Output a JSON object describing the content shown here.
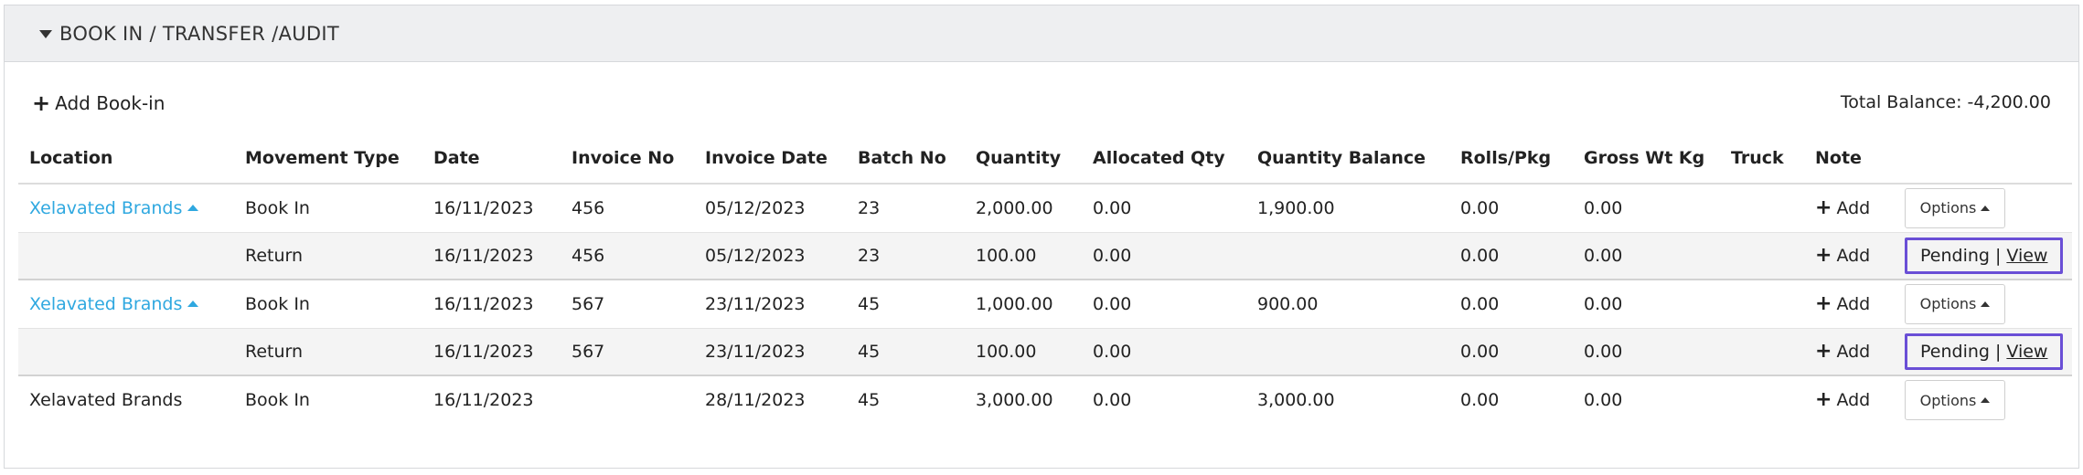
{
  "panel": {
    "title": "BOOK IN / TRANSFER /AUDIT"
  },
  "toolbar": {
    "add_label": "Add Book-in",
    "total_balance": "Total Balance: -4,200.00"
  },
  "table": {
    "headers": [
      "Location",
      "Movement Type",
      "Date",
      "Invoice No",
      "Invoice Date",
      "Batch No",
      "Quantity",
      "Allocated Qty",
      "Quantity Balance",
      "Rolls/Pkg",
      "Gross Wt Kg",
      "Truck",
      "Note",
      ""
    ],
    "note_add_label": "Add",
    "options_label": "Options",
    "pending_label": "Pending",
    "separator": "|",
    "view_label": "View",
    "rows": [
      {
        "location": "Xelavated Brands",
        "movement": "Book In",
        "date": "16/11/2023",
        "invoice_no": "456",
        "invoice_date": "05/12/2023",
        "batch": "23",
        "quantity": "2,000.00",
        "allocated": "0.00",
        "balance": "1,900.00",
        "rolls": "0.00",
        "gross": "0.00",
        "truck": ""
      },
      {
        "location": "",
        "movement": "Return",
        "date": "16/11/2023",
        "invoice_no": "456",
        "invoice_date": "05/12/2023",
        "batch": "23",
        "quantity": "100.00",
        "allocated": "0.00",
        "balance": "",
        "rolls": "0.00",
        "gross": "0.00",
        "truck": ""
      },
      {
        "location": "Xelavated Brands",
        "movement": "Book In",
        "date": "16/11/2023",
        "invoice_no": "567",
        "invoice_date": "23/11/2023",
        "batch": "45",
        "quantity": "1,000.00",
        "allocated": "0.00",
        "balance": "900.00",
        "rolls": "0.00",
        "gross": "0.00",
        "truck": ""
      },
      {
        "location": "",
        "movement": "Return",
        "date": "16/11/2023",
        "invoice_no": "567",
        "invoice_date": "23/11/2023",
        "batch": "45",
        "quantity": "100.00",
        "allocated": "0.00",
        "balance": "",
        "rolls": "0.00",
        "gross": "0.00",
        "truck": ""
      },
      {
        "location": "Xelavated Brands",
        "movement": "Book In",
        "date": "16/11/2023",
        "invoice_no": "",
        "invoice_date": "28/11/2023",
        "batch": "45",
        "quantity": "3,000.00",
        "allocated": "0.00",
        "balance": "3,000.00",
        "rolls": "0.00",
        "gross": "0.00",
        "truck": ""
      }
    ]
  }
}
